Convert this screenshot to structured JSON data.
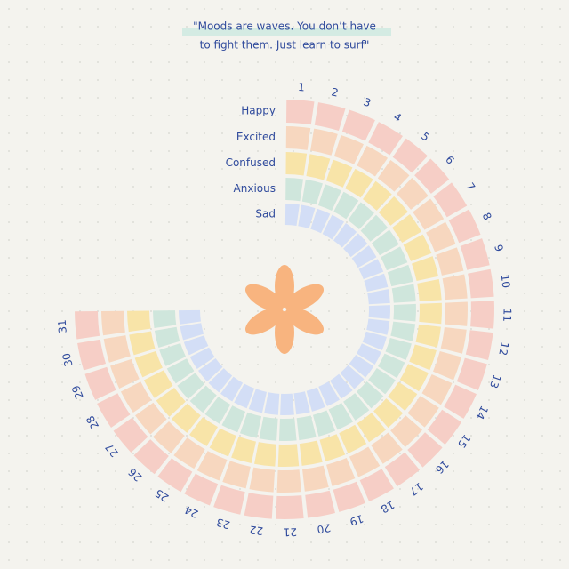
{
  "quote": [
    "\"Moods are waves. You don’t have",
    "to fight them. Just learn to surf\""
  ],
  "moods": [
    {
      "label": "Happy",
      "color": "#f6cec6"
    },
    {
      "label": "Excited",
      "color": "#f7d7bf"
    },
    {
      "label": "Confused",
      "color": "#f8e4a8"
    },
    {
      "label": "Anxious",
      "color": "#cfe6dc"
    },
    {
      "label": "Sad",
      "color": "#d3def6"
    }
  ],
  "days": [
    1,
    2,
    3,
    4,
    5,
    6,
    7,
    8,
    9,
    10,
    11,
    12,
    13,
    14,
    15,
    16,
    17,
    18,
    19,
    20,
    21,
    22,
    23,
    24,
    25,
    26,
    27,
    28,
    29,
    30,
    31
  ]
}
